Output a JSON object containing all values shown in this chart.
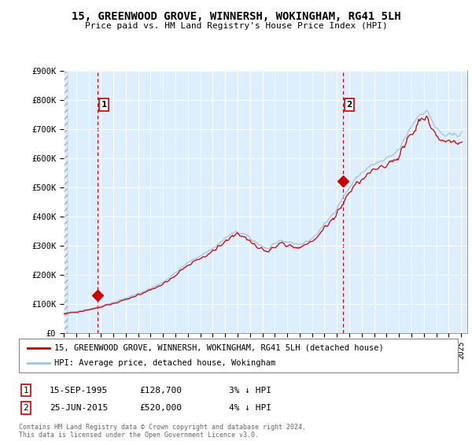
{
  "title": "15, GREENWOOD GROVE, WINNERSH, WOKINGHAM, RG41 5LH",
  "subtitle": "Price paid vs. HM Land Registry's House Price Index (HPI)",
  "ylim": [
    0,
    900000
  ],
  "ytick_labels": [
    "£0",
    "£100K",
    "£200K",
    "£300K",
    "£400K",
    "£500K",
    "£600K",
    "£700K",
    "£800K",
    "£900K"
  ],
  "hpi_color": "#a0c4e0",
  "price_color": "#cc0000",
  "vline_color": "#cc0000",
  "plot_bg_color": "#ddeeff",
  "grid_color": "#ffffff",
  "p1_x": 1995.71,
  "p1_y": 128700,
  "p2_x": 2015.48,
  "p2_y": 520000,
  "legend_line1": "15, GREENWOOD GROVE, WINNERSH, WOKINGHAM, RG41 5LH (detached house)",
  "legend_line2": "HPI: Average price, detached house, Wokingham",
  "table_row1": [
    "1",
    "15-SEP-1995",
    "£128,700",
    "3% ↓ HPI"
  ],
  "table_row2": [
    "2",
    "25-JUN-2015",
    "£520,000",
    "4% ↓ HPI"
  ],
  "footer": "Contains HM Land Registry data © Crown copyright and database right 2024.\nThis data is licensed under the Open Government Licence v3.0.",
  "xlim_left": 1993.0,
  "xlim_right": 2025.5
}
